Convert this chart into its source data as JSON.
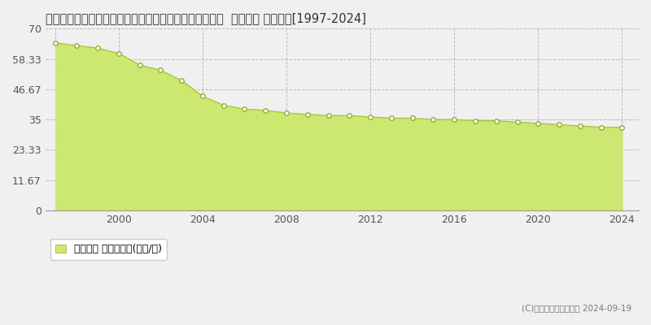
{
  "title": "兵庫県神戸市垂水区千代が丘１丁目２２５２番１０９０  基準地価 地価推移[1997-2024]",
  "years": [
    1997,
    1998,
    1999,
    2000,
    2001,
    2002,
    2003,
    2004,
    2005,
    2006,
    2007,
    2008,
    2009,
    2010,
    2011,
    2012,
    2013,
    2014,
    2015,
    2016,
    2017,
    2018,
    2019,
    2020,
    2021,
    2022,
    2023,
    2024
  ],
  "values": [
    64.5,
    63.5,
    62.5,
    60.5,
    56.0,
    54.0,
    50.0,
    44.0,
    40.5,
    39.0,
    38.5,
    37.5,
    37.0,
    36.5,
    36.5,
    36.0,
    35.5,
    35.5,
    35.0,
    35.0,
    34.5,
    34.5,
    34.0,
    33.5,
    33.0,
    32.5,
    32.0,
    32.0
  ],
  "line_color": "#a8c840",
  "fill_color": "#cde870",
  "fill_alpha": 1.0,
  "marker_color": "white",
  "marker_edge_color": "#90b030",
  "yticks": [
    0,
    11.67,
    23.33,
    35,
    46.67,
    58.33,
    70
  ],
  "ytick_labels": [
    "0",
    "11.67",
    "23.33",
    "35",
    "46.67",
    "58.33",
    "70"
  ],
  "xticks": [
    1997,
    2000,
    2004,
    2008,
    2012,
    2016,
    2020,
    2024
  ],
  "xtick_labels": [
    "",
    "2000",
    "2004",
    "2008",
    "2012",
    "2016",
    "2020",
    "2024"
  ],
  "ylim": [
    0,
    70
  ],
  "xlim": [
    1996.5,
    2024.8
  ],
  "legend_label": "基準地価 平均坪単価(万円/坪)",
  "copyright": "(C)土地価格ドットコム 2024-09-19",
  "background_color": "#f0f0f0",
  "plot_bg_color": "#f0f0f0",
  "title_fontsize": 10.5,
  "tick_fontsize": 9,
  "legend_fontsize": 9
}
